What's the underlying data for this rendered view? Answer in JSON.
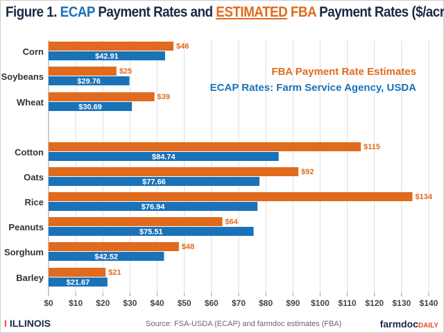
{
  "title": {
    "prefix": "Figure 1. ",
    "ecap": "ECAP",
    "mid": " Payment Rates and ",
    "estimated": "ESTIMATED",
    "fba": " FBA",
    "suffix": " Payment Rates ($/acre)"
  },
  "colors": {
    "fba": "#e06a1e",
    "ecap": "#1a72b8",
    "grid": "#dddddd"
  },
  "chart_data": {
    "type": "bar",
    "orientation": "horizontal",
    "categories": [
      "Corn",
      "Soybeans",
      "Wheat",
      "Cotton",
      "Oats",
      "Rice",
      "Peanuts",
      "Sorghum",
      "Barley"
    ],
    "series": [
      {
        "name": "FBA Payment Rate Estimates",
        "values": [
          46,
          25,
          39,
          115,
          92,
          134,
          64,
          48,
          21
        ],
        "labels": [
          "$46",
          "$25",
          "$39",
          "$115",
          "$92",
          "$134",
          "$64",
          "$48",
          "$21"
        ]
      },
      {
        "name": "ECAP Rates: Farm Service Agency, USDA",
        "values": [
          42.91,
          29.76,
          30.69,
          84.74,
          77.66,
          76.94,
          75.51,
          42.52,
          21.67
        ],
        "labels": [
          "$42.91",
          "$29.76",
          "$30.69",
          "$84.74",
          "$77.66",
          "$76.94",
          "$75.51",
          "$42.52",
          "$21.67"
        ]
      }
    ],
    "xlim": [
      0,
      140
    ],
    "xticks": [
      "$0",
      "$10",
      "$20",
      "$30",
      "$40",
      "$50",
      "$60",
      "$70",
      "$80",
      "$90",
      "$100",
      "$110",
      "$120",
      "$130",
      "$140"
    ],
    "grid": true,
    "legend": "top-right"
  },
  "footer": {
    "logo": "ILLINOIS",
    "source": "Source: FSA-USDA (ECAP) and farmdoc estimates (FBA)",
    "brand_main": "farmdoc",
    "brand_sub": "DAILY"
  }
}
